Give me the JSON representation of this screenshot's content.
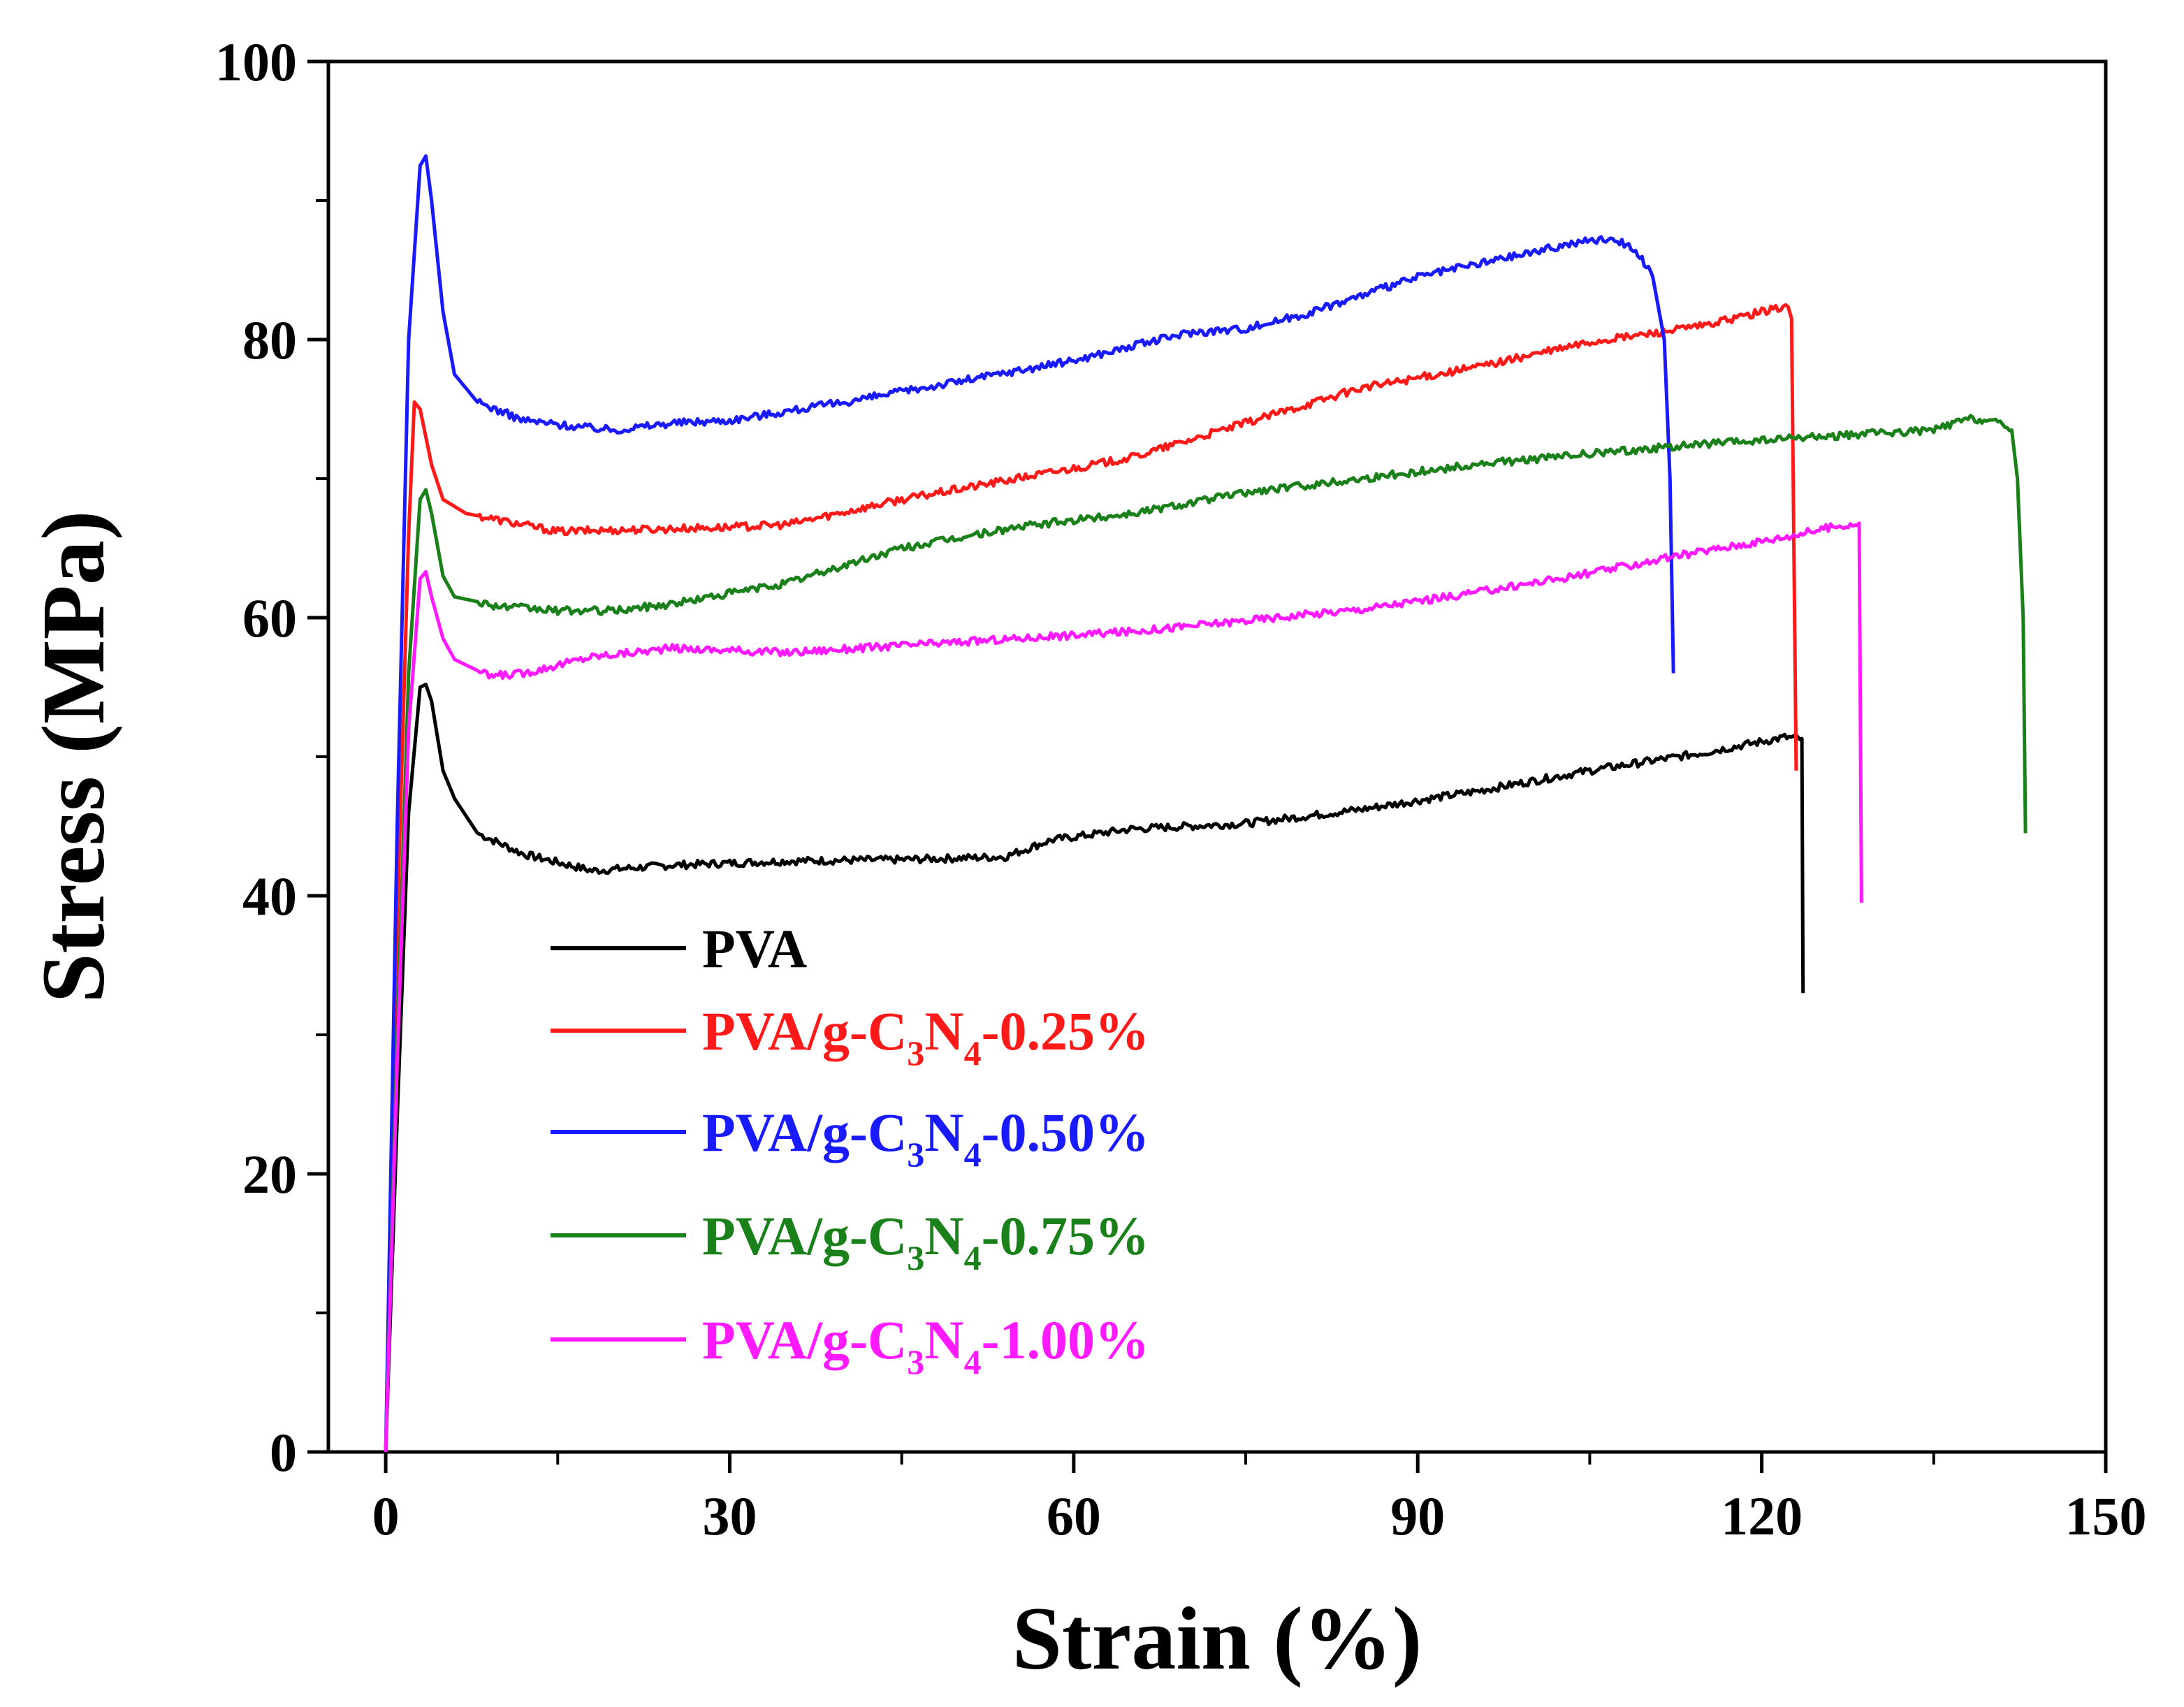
{
  "chart_data": {
    "type": "line",
    "title": "",
    "xlabel": "Strain (%)",
    "ylabel": "Stress (MPa)",
    "xlim": [
      -5,
      150
    ],
    "ylim": [
      0,
      100
    ],
    "x_ticks": [
      0,
      30,
      60,
      90,
      120,
      150
    ],
    "x_tick_labels": [
      "0",
      "30",
      "60",
      "90",
      "120",
      "150"
    ],
    "y_ticks": [
      0,
      20,
      40,
      60,
      80,
      100
    ],
    "y_tick_labels": [
      "0",
      "20",
      "40",
      "60",
      "80",
      "100"
    ],
    "legend_position": "lower-left",
    "series": [
      {
        "name": "PVA",
        "legend": {
          "pre": "PVA",
          "sub1": "",
          "mid": "",
          "sub2": "",
          "post": ""
        },
        "color": "#000000",
        "x": [
          0,
          1,
          2,
          3,
          3.5,
          4,
          5,
          6,
          8,
          12,
          18,
          25,
          35,
          45,
          54,
          58,
          65,
          75,
          85,
          95,
          105,
          115,
          122,
          123.5,
          123.6
        ],
        "y": [
          0,
          24,
          46,
          55,
          55.2,
          54,
          49,
          47,
          44.5,
          43,
          41.8,
          42.2,
          42.5,
          42.6,
          42.8,
          44,
          44.8,
          45.2,
          46.2,
          47.5,
          49,
          50.3,
          51.4,
          51.3,
          33
        ]
      },
      {
        "name": "PVA/g-C3N4-0.25%",
        "legend": {
          "pre": "PVA/g-C",
          "sub1": "3",
          "mid": "N",
          "sub2": "4",
          "post": "-0.25%"
        },
        "color": "#ff1a1a",
        "x": [
          0,
          1,
          2,
          2.5,
          3,
          4,
          5,
          7,
          10,
          15,
          20,
          30,
          35,
          45,
          55,
          65,
          75,
          85,
          95,
          105,
          115,
          121,
          122.3,
          122.6,
          123
        ],
        "y": [
          0,
          38,
          66,
          75.5,
          75,
          71,
          68.5,
          67.5,
          67,
          66.2,
          66.3,
          66.5,
          66.7,
          68.5,
          70,
          71.5,
          74,
          76.5,
          78,
          79.8,
          81,
          82.2,
          82.4,
          81.5,
          49
        ]
      },
      {
        "name": "PVA/g-C3N4-0.50%",
        "legend": {
          "pre": "PVA/g-C",
          "sub1": "3",
          "mid": "N",
          "sub2": "4",
          "post": "-0.50%"
        },
        "color": "#1a1aff",
        "x": [
          0,
          1,
          2,
          3,
          3.5,
          4,
          5,
          6,
          8,
          12,
          16,
          20,
          25,
          30,
          40,
          50,
          60,
          70,
          75,
          80,
          90,
          100,
          104,
          107,
          109,
          110.5,
          111.5,
          112,
          112.3
        ],
        "y": [
          0,
          45,
          80,
          92.5,
          93.2,
          90,
          82,
          77.5,
          75.5,
          74.2,
          73.8,
          73.5,
          74,
          74.2,
          75.5,
          77,
          78.5,
          80.5,
          80.8,
          81.8,
          84.5,
          86.3,
          87,
          87.3,
          86.5,
          84.5,
          80,
          70,
          56
        ]
      },
      {
        "name": "PVA/g-C3N4-0.75%",
        "legend": {
          "pre": "PVA/g-C",
          "sub1": "3",
          "mid": "N",
          "sub2": "4",
          "post": "-0.75%"
        },
        "color": "#1a801a",
        "x": [
          0,
          1,
          2,
          3,
          3.5,
          4,
          5,
          6,
          10,
          15,
          20,
          25,
          35,
          45,
          55,
          65,
          75,
          85,
          95,
          105,
          115,
          125,
          135,
          138,
          140,
          141.8,
          142.3,
          142.8,
          143
        ],
        "y": [
          0,
          30,
          56,
          68.5,
          69.2,
          67.5,
          63,
          61.5,
          60.8,
          60.5,
          60.5,
          61,
          62.5,
          65,
          66.5,
          67.5,
          69,
          70,
          71,
          71.8,
          72.5,
          73,
          73.5,
          74.3,
          74.2,
          73.5,
          70,
          60,
          44.5
        ]
      },
      {
        "name": "PVA/g-C3N4-1.00%",
        "legend": {
          "pre": "PVA/g-C",
          "sub1": "3",
          "mid": "N",
          "sub2": "4",
          "post": "-1.00%"
        },
        "color": "#ff1aff",
        "x": [
          0,
          1,
          2,
          3,
          3.5,
          4,
          5,
          6,
          9,
          12,
          18,
          25,
          35,
          45,
          55,
          65,
          75,
          85,
          95,
          105,
          115,
          122,
          126,
          128.5,
          128.7
        ],
        "y": [
          0,
          28,
          52,
          62.8,
          63.3,
          61.5,
          58.5,
          57,
          55.8,
          56,
          57.2,
          57.8,
          57.5,
          58,
          58.5,
          59,
          59.8,
          60.6,
          61.8,
          63.2,
          64.8,
          65.8,
          66.5,
          66.8,
          39.5
        ]
      }
    ]
  }
}
